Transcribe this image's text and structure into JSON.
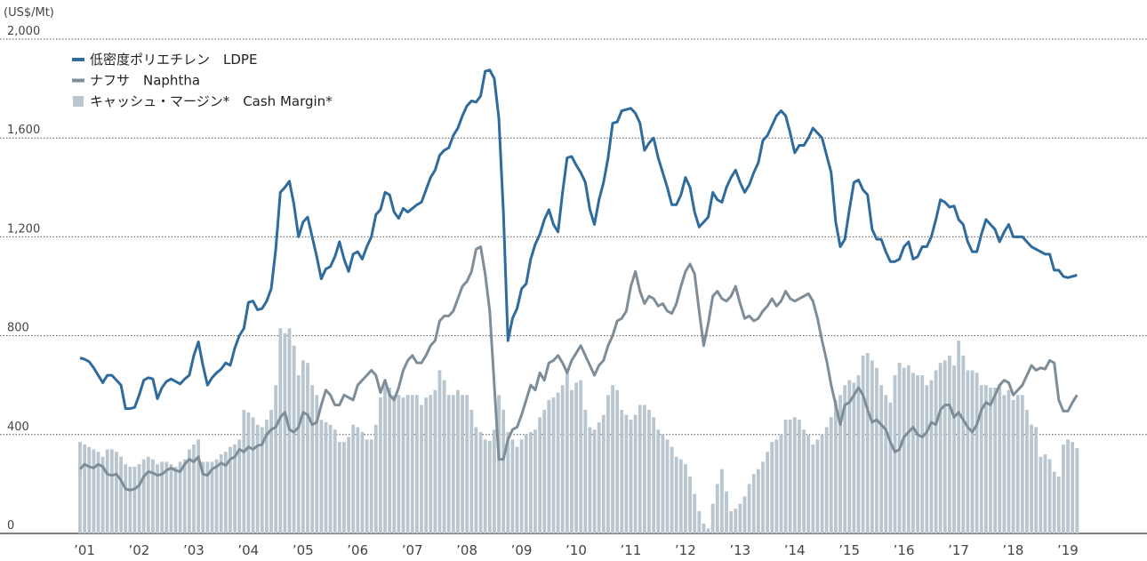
{
  "chart_data": {
    "type": "bar",
    "y_label": "(US$/Mt)",
    "ylim": [
      0,
      2000
    ],
    "yticks": [
      0,
      400,
      800,
      {
        "value": 1200,
        "label": "1,200"
      },
      {
        "value": 1600,
        "label": "1,600"
      },
      {
        "value": 2000,
        "label": "2,000"
      }
    ],
    "grid": true,
    "legend": "upper left",
    "categories": [
      "’01",
      null,
      null,
      null,
      null,
      null,
      null,
      null,
      null,
      null,
      null,
      null,
      "’02",
      null,
      null,
      null,
      null,
      null,
      null,
      null,
      null,
      null,
      null,
      null,
      "’03",
      null,
      null,
      null,
      null,
      null,
      null,
      null,
      null,
      null,
      null,
      null,
      "’04",
      null,
      null,
      null,
      null,
      null,
      null,
      null,
      null,
      null,
      null,
      null,
      "’05",
      null,
      null,
      null,
      null,
      null,
      null,
      null,
      null,
      null,
      null,
      null,
      "’06",
      null,
      null,
      null,
      null,
      null,
      null,
      null,
      null,
      null,
      null,
      null,
      "’07",
      null,
      null,
      null,
      null,
      null,
      null,
      null,
      null,
      null,
      null,
      null,
      "’08",
      null,
      null,
      null,
      null,
      null,
      null,
      null,
      null,
      null,
      null,
      null,
      "’09",
      null,
      null,
      null,
      null,
      null,
      null,
      null,
      null,
      null,
      null,
      null,
      "’10",
      null,
      null,
      null,
      null,
      null,
      null,
      null,
      null,
      null,
      null,
      null,
      "’11",
      null,
      null,
      null,
      null,
      null,
      null,
      null,
      null,
      null,
      null,
      null,
      "’12",
      null,
      null,
      null,
      null,
      null,
      null,
      null,
      null,
      null,
      null,
      null,
      "’13",
      null,
      null,
      null,
      null,
      null,
      null,
      null,
      null,
      null,
      null,
      null,
      "’14",
      null,
      null,
      null,
      null,
      null,
      null,
      null,
      null,
      null,
      null,
      null,
      "’15",
      null,
      null,
      null,
      null,
      null,
      null,
      null,
      null,
      null,
      null,
      null,
      "’16",
      null,
      null,
      null,
      null,
      null,
      null,
      null,
      null,
      null,
      null,
      null,
      "’17",
      null,
      null,
      null,
      null,
      null,
      null,
      null,
      null,
      null,
      null,
      null,
      "’18",
      null,
      null,
      null,
      null,
      null,
      null,
      null,
      null,
      null,
      null,
      null,
      "’19",
      null,
      null,
      null
    ],
    "series": [
      {
        "name": "低密度ポリエチレン　LDPE",
        "type": "line",
        "color": "#2f6b9c",
        "values": [
          710,
          705,
          695,
          670,
          640,
          610,
          640,
          640,
          620,
          600,
          505,
          505,
          510,
          560,
          620,
          630,
          625,
          545,
          590,
          615,
          625,
          615,
          605,
          625,
          640,
          720,
          775,
          680,
          600,
          630,
          650,
          665,
          690,
          680,
          750,
          800,
          830,
          935,
          940,
          905,
          910,
          940,
          990,
          1150,
          1380,
          1400,
          1425,
          1330,
          1200,
          1260,
          1280,
          1200,
          1120,
          1030,
          1070,
          1080,
          1120,
          1180,
          1110,
          1060,
          1130,
          1140,
          1110,
          1160,
          1200,
          1290,
          1310,
          1380,
          1370,
          1300,
          1275,
          1315,
          1300,
          1315,
          1330,
          1340,
          1390,
          1440,
          1470,
          1530,
          1550,
          1560,
          1610,
          1640,
          1690,
          1730,
          1750,
          1745,
          1770,
          1870,
          1875,
          1840,
          1680,
          1300,
          780,
          870,
          910,
          990,
          1010,
          1110,
          1170,
          1210,
          1270,
          1310,
          1250,
          1220,
          1380,
          1520,
          1525,
          1490,
          1460,
          1420,
          1310,
          1250,
          1350,
          1420,
          1520,
          1660,
          1665,
          1710,
          1715,
          1720,
          1700,
          1660,
          1550,
          1580,
          1600,
          1520,
          1460,
          1400,
          1330,
          1330,
          1370,
          1440,
          1400,
          1300,
          1240,
          1260,
          1280,
          1380,
          1350,
          1340,
          1400,
          1440,
          1470,
          1420,
          1380,
          1410,
          1460,
          1500,
          1590,
          1610,
          1650,
          1690,
          1710,
          1690,
          1620,
          1540,
          1570,
          1570,
          1600,
          1640,
          1620,
          1600,
          1530,
          1460,
          1260,
          1160,
          1190,
          1310,
          1420,
          1430,
          1390,
          1370,
          1230,
          1190,
          1190,
          1140,
          1100,
          1100,
          1110,
          1160,
          1180,
          1110,
          1120,
          1160,
          1160,
          1200,
          1270,
          1350,
          1340,
          1320,
          1325,
          1270,
          1250,
          1180,
          1140,
          1140,
          1210,
          1270,
          1250,
          1230,
          1180,
          1220,
          1250,
          1200,
          1200,
          1200,
          1180,
          1160,
          1150,
          1140,
          1130,
          1130,
          1065,
          1065,
          1040,
          1035,
          1040,
          1045
        ]
      },
      {
        "name": "ナフサ　Naphtha",
        "type": "line",
        "color": "#7e8d98",
        "values": [
          260,
          280,
          270,
          265,
          280,
          270,
          240,
          235,
          240,
          215,
          180,
          175,
          180,
          195,
          230,
          250,
          245,
          235,
          240,
          255,
          265,
          255,
          250,
          280,
          300,
          290,
          310,
          240,
          235,
          260,
          270,
          285,
          275,
          300,
          310,
          340,
          330,
          350,
          340,
          355,
          360,
          400,
          420,
          430,
          470,
          490,
          420,
          410,
          430,
          490,
          480,
          440,
          450,
          520,
          580,
          560,
          520,
          520,
          560,
          550,
          540,
          600,
          620,
          640,
          660,
          640,
          570,
          620,
          560,
          540,
          590,
          660,
          700,
          720,
          690,
          690,
          720,
          760,
          780,
          860,
          880,
          880,
          900,
          950,
          1000,
          1020,
          1060,
          1150,
          1160,
          1050,
          900,
          600,
          300,
          300,
          380,
          420,
          430,
          480,
          540,
          600,
          580,
          650,
          620,
          690,
          700,
          720,
          690,
          650,
          700,
          730,
          760,
          720,
          680,
          640,
          680,
          700,
          760,
          800,
          860,
          870,
          900,
          1000,
          1060,
          980,
          930,
          960,
          950,
          920,
          930,
          900,
          890,
          930,
          1000,
          1060,
          1090,
          1050,
          900,
          760,
          850,
          960,
          980,
          950,
          940,
          960,
          1000,
          930,
          870,
          880,
          860,
          870,
          900,
          920,
          950,
          920,
          940,
          980,
          950,
          940,
          950,
          960,
          970,
          940,
          870,
          780,
          700,
          600,
          520,
          440,
          520,
          530,
          560,
          590,
          560,
          500,
          450,
          460,
          440,
          420,
          370,
          330,
          340,
          390,
          410,
          430,
          400,
          390,
          410,
          450,
          440,
          500,
          520,
          520,
          470,
          490,
          460,
          430,
          410,
          440,
          500,
          530,
          520,
          560,
          600,
          620,
          610,
          560,
          580,
          600,
          640,
          680,
          660,
          670,
          665,
          700,
          690,
          540,
          495,
          495,
          530,
          560
        ]
      },
      {
        "name": "キャッシュ・マージン*　Cash Margin*",
        "type": "bar",
        "color": "#b9c6cf",
        "values": [
          370,
          360,
          350,
          340,
          330,
          310,
          340,
          340,
          330,
          310,
          280,
          270,
          270,
          280,
          300,
          310,
          300,
          280,
          290,
          290,
          280,
          270,
          290,
          300,
          340,
          360,
          380,
          290,
          290,
          290,
          300,
          320,
          330,
          350,
          360,
          380,
          500,
          490,
          470,
          440,
          430,
          460,
          500,
          600,
          830,
          810,
          830,
          760,
          640,
          700,
          690,
          600,
          560,
          460,
          450,
          440,
          420,
          370,
          370,
          390,
          440,
          430,
          410,
          380,
          380,
          440,
          550,
          600,
          590,
          560,
          560,
          550,
          560,
          560,
          560,
          520,
          550,
          560,
          580,
          660,
          620,
          560,
          560,
          580,
          560,
          560,
          500,
          430,
          410,
          380,
          375,
          420,
          560,
          500,
          410,
          380,
          350,
          380,
          400,
          410,
          420,
          470,
          500,
          540,
          550,
          570,
          600,
          660,
          580,
          610,
          620,
          500,
          430,
          420,
          450,
          480,
          560,
          600,
          580,
          500,
          480,
          460,
          480,
          520,
          520,
          500,
          470,
          420,
          400,
          380,
          350,
          310,
          300,
          280,
          230,
          160,
          90,
          40,
          20,
          120,
          200,
          260,
          170,
          90,
          100,
          120,
          150,
          200,
          240,
          260,
          290,
          330,
          370,
          380,
          400,
          460,
          460,
          470,
          460,
          420,
          400,
          360,
          380,
          400,
          430,
          470,
          540,
          560,
          600,
          620,
          610,
          640,
          720,
          730,
          700,
          670,
          600,
          560,
          530,
          640,
          690,
          670,
          680,
          650,
          640,
          640,
          600,
          620,
          660,
          690,
          700,
          720,
          680,
          780,
          720,
          660,
          660,
          650,
          600,
          600,
          590,
          590,
          600,
          560,
          580,
          540,
          560,
          560,
          500,
          440,
          430,
          310,
          320,
          300,
          250,
          230,
          360,
          380,
          370,
          345
        ]
      }
    ]
  }
}
